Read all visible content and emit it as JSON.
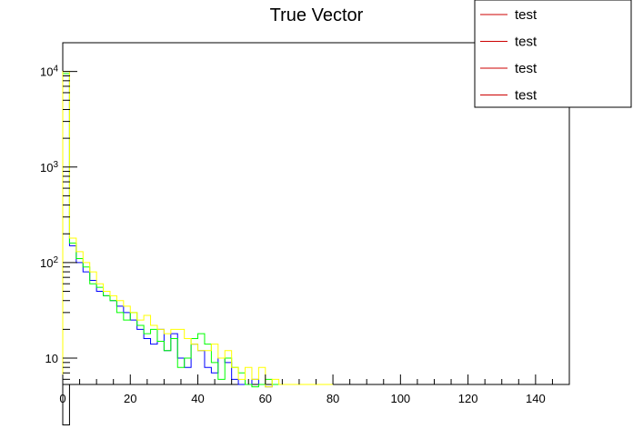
{
  "chart_data": {
    "type": "histogram",
    "title": "True Vector",
    "xlabel": "",
    "ylabel": "",
    "xlim": [
      0,
      150
    ],
    "ylim": [
      5.3,
      20000
    ],
    "y_scale": "log",
    "bin_width": 2,
    "grid": false,
    "legend_position": "top-right",
    "x_ticks": [
      0,
      20,
      40,
      60,
      80,
      100,
      120,
      140
    ],
    "x_tick_labels": [
      "0",
      "20",
      "40",
      "60",
      "80",
      "100",
      "120",
      "140"
    ],
    "y_major_ticks": [
      10,
      100,
      1000,
      10000
    ],
    "y_tick_labels": [
      {
        "base": "10",
        "exp": ""
      },
      {
        "base": "10",
        "exp": "2"
      },
      {
        "base": "10",
        "exp": "3"
      },
      {
        "base": "10",
        "exp": "4"
      }
    ],
    "legend": [
      "test",
      "test",
      "test",
      "test"
    ],
    "series": [
      {
        "color": "#000000",
        "values": [
          2,
          0,
          0,
          0,
          0,
          0,
          0,
          0,
          0,
          0
        ]
      },
      {
        "color": "#0000ff",
        "values": [
          9000,
          150,
          100,
          80,
          65,
          50,
          45,
          40,
          35,
          30,
          25,
          20,
          16,
          14,
          20,
          12,
          18,
          10,
          8,
          14,
          12,
          8,
          7,
          10,
          9,
          6,
          0,
          0,
          6,
          0,
          5,
          0,
          0,
          0,
          0,
          0,
          0,
          0,
          0,
          0
        ]
      },
      {
        "color": "#00ff00",
        "values": [
          9500,
          160,
          110,
          90,
          60,
          55,
          45,
          40,
          30,
          25,
          30,
          22,
          18,
          20,
          15,
          12,
          16,
          8,
          10,
          16,
          18,
          14,
          9,
          6,
          10,
          8,
          7,
          0,
          5,
          0,
          6,
          0,
          0,
          0,
          0,
          0,
          0,
          0,
          0,
          0
        ]
      },
      {
        "color": "#ffff00",
        "values": [
          10000,
          180,
          130,
          100,
          80,
          60,
          50,
          45,
          40,
          35,
          30,
          25,
          28,
          22,
          20,
          18,
          20,
          20,
          16,
          14,
          12,
          12,
          14,
          10,
          12,
          8,
          6,
          8,
          6,
          8,
          5,
          6,
          0,
          0,
          0,
          0,
          0,
          0,
          0,
          0
        ]
      }
    ]
  }
}
